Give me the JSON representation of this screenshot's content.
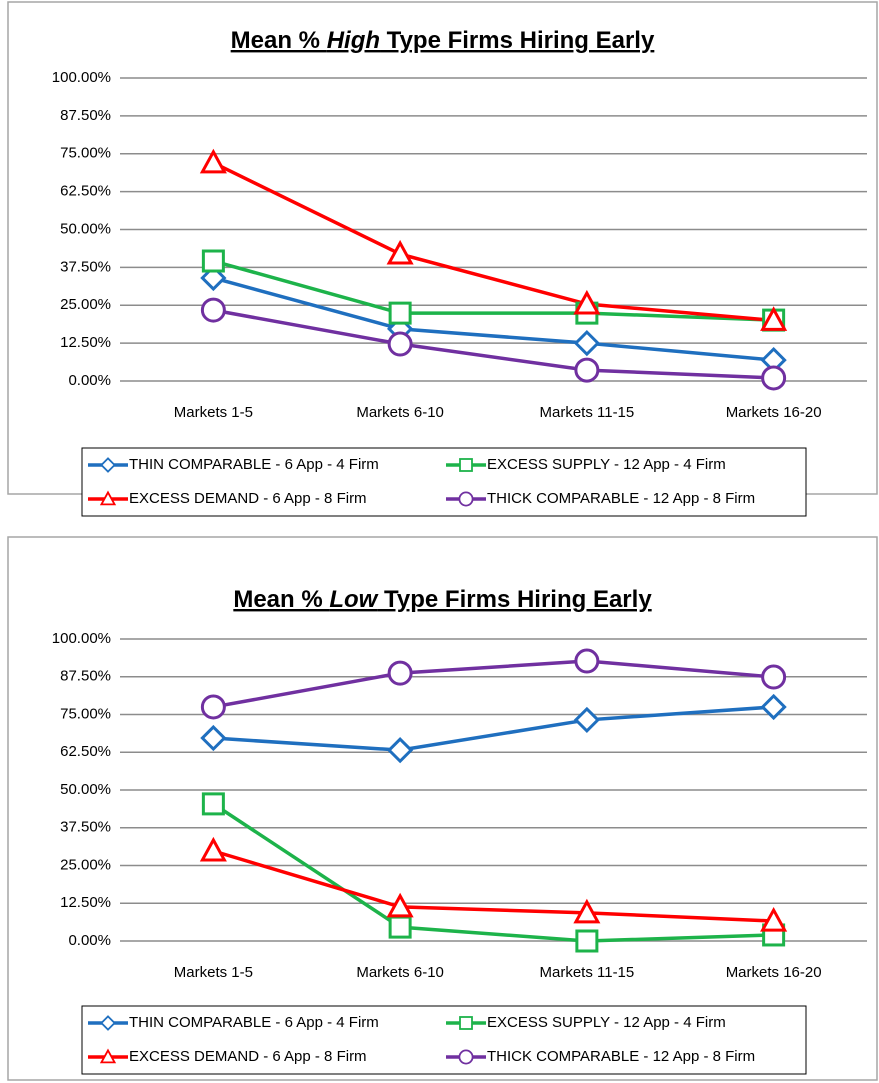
{
  "chart_data": [
    {
      "type": "line",
      "title": [
        "Mean % ",
        "High",
        " Type Firms Hiring Early"
      ],
      "categories": [
        "Markets 1-5",
        "Markets 6-10",
        "Markets 11-15",
        "Markets 16-20"
      ],
      "ylim": [
        0,
        100
      ],
      "yticks": [
        {
          "value": 0,
          "label": "0.00%"
        },
        {
          "value": 12.5,
          "label": "12.50%"
        },
        {
          "value": 25,
          "label": "25.00%"
        },
        {
          "value": 37.5,
          "label": "37.50%"
        },
        {
          "value": 50,
          "label": "50.00%"
        },
        {
          "value": 62.5,
          "label": "62.50%"
        },
        {
          "value": 75,
          "label": "75.00%"
        },
        {
          "value": 87.5,
          "label": "87.50%"
        },
        {
          "value": 100,
          "label": "100.00%"
        }
      ],
      "grid": true,
      "legend": "bottom",
      "series": [
        {
          "name": "THIN COMPARABLE - 6 App - 4 Firm",
          "color": "#1f6fbf",
          "marker": "diamond",
          "values": [
            34,
            17.2,
            12.5,
            6.9
          ]
        },
        {
          "name": "EXCESS SUPPLY - 12 App - 4 Firm",
          "color": "#1db34a",
          "marker": "square",
          "values": [
            39.6,
            22.4,
            22.4,
            20.1
          ]
        },
        {
          "name": "EXCESS DEMAND - 6 App - 8 Firm",
          "color": "#ff0000",
          "marker": "triangle",
          "values": [
            72,
            41.9,
            25.4,
            20
          ]
        },
        {
          "name": "THICK COMPARABLE - 12 App - 8 Firm",
          "color": "#7030a0",
          "marker": "circle",
          "values": [
            23.4,
            12.2,
            3.6,
            1
          ]
        }
      ]
    },
    {
      "type": "line",
      "title": [
        "Mean % ",
        "Low",
        " Type Firms Hiring Early"
      ],
      "categories": [
        "Markets 1-5",
        "Markets 6-10",
        "Markets 11-15",
        "Markets 16-20"
      ],
      "ylim": [
        0,
        100
      ],
      "yticks": [
        {
          "value": 0,
          "label": "0.00%"
        },
        {
          "value": 12.5,
          "label": "12.50%"
        },
        {
          "value": 25,
          "label": "25.00%"
        },
        {
          "value": 37.5,
          "label": "37.50%"
        },
        {
          "value": 50,
          "label": "50.00%"
        },
        {
          "value": 62.5,
          "label": "62.50%"
        },
        {
          "value": 75,
          "label": "75.00%"
        },
        {
          "value": 87.5,
          "label": "87.50%"
        },
        {
          "value": 100,
          "label": "100.00%"
        }
      ],
      "grid": true,
      "legend": "bottom",
      "series": [
        {
          "name": "THIN COMPARABLE - 6 App - 4 Firm",
          "color": "#1f6fbf",
          "marker": "diamond",
          "values": [
            67.2,
            63.2,
            73.2,
            77.5
          ]
        },
        {
          "name": "EXCESS SUPPLY - 12 App - 4 Firm",
          "color": "#1db34a",
          "marker": "square",
          "values": [
            45.4,
            4.6,
            0,
            2
          ]
        },
        {
          "name": "EXCESS DEMAND - 6 App - 8 Firm",
          "color": "#ff0000",
          "marker": "triangle",
          "values": [
            29.8,
            11.3,
            9.3,
            6.6
          ]
        },
        {
          "name": "THICK COMPARABLE - 12 App - 8 Firm",
          "color": "#7030a0",
          "marker": "circle",
          "values": [
            77.5,
            88.7,
            92.7,
            87.4
          ]
        }
      ]
    }
  ]
}
